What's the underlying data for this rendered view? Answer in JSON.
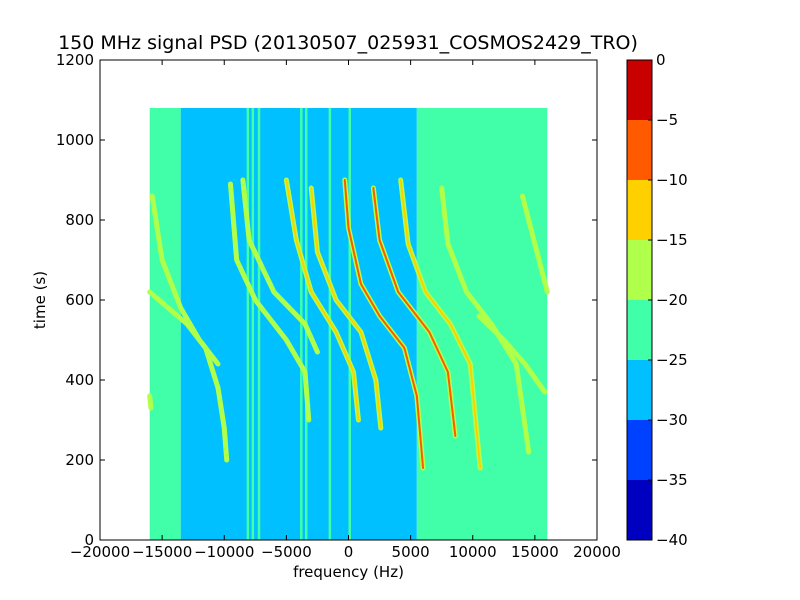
{
  "chart_data": {
    "type": "heatmap",
    "title": "150 MHz signal PSD (20130507_025931_COSMOS2429_TRO)",
    "xlabel": "frequency (Hz)",
    "ylabel": "time (s)",
    "xlim": [
      -20000,
      20000
    ],
    "ylim": [
      0,
      1200
    ],
    "x_ticks": [
      -20000,
      -15000,
      -10000,
      -5000,
      0,
      5000,
      10000,
      15000,
      20000
    ],
    "x_tick_labels": [
      "−20000",
      "−15000",
      "−10000",
      "−5000",
      "0",
      "5000",
      "10000",
      "15000",
      "20000"
    ],
    "y_ticks": [
      0,
      200,
      400,
      600,
      800,
      1000,
      1200
    ],
    "y_tick_labels": [
      "0",
      "200",
      "400",
      "600",
      "800",
      "1000",
      "1200"
    ],
    "data_extent": {
      "x": [
        -16000,
        16000
      ],
      "y": [
        0,
        1080
      ]
    },
    "colorbar": {
      "range": [
        -40,
        0
      ],
      "levels": [
        -40,
        -35,
        -30,
        -25,
        -20,
        -15,
        -10,
        -5,
        0
      ],
      "tick_labels": [
        "−40",
        "−35",
        "−30",
        "−25",
        "−20",
        "−15",
        "−10",
        "−5",
        "0"
      ],
      "colors": [
        "#0000c0",
        "#0040ff",
        "#00c0ff",
        "#40ffa8",
        "#b0ff4a",
        "#ffd000",
        "#ff5a00",
        "#c80000"
      ]
    },
    "background_regions": [
      {
        "x": [
          -16000,
          -13500
        ],
        "level": -22.5
      },
      {
        "x": [
          -13500,
          5500
        ],
        "level": -27.5
      },
      {
        "x": [
          5500,
          16000
        ],
        "level": -22.5
      }
    ],
    "vertical_lines": [
      {
        "x": -8100,
        "level": -22.5
      },
      {
        "x": -7700,
        "level": -22.5
      },
      {
        "x": -7200,
        "level": -22.5
      },
      {
        "x": -3800,
        "level": -22.5
      },
      {
        "x": -3400,
        "level": -22.5
      },
      {
        "x": -1500,
        "level": -22.5
      },
      {
        "x": 100,
        "level": -22.5
      }
    ],
    "traces": [
      {
        "points": [
          [
            -16000,
            620
          ],
          [
            -13000,
            540
          ],
          [
            -11500,
            480
          ],
          [
            -10500,
            380
          ],
          [
            -10000,
            280
          ],
          [
            -9800,
            200
          ]
        ],
        "level": -17.5
      },
      {
        "points": [
          [
            -15800,
            860
          ],
          [
            -15000,
            700
          ],
          [
            -13500,
            580
          ],
          [
            -12000,
            500
          ],
          [
            -10500,
            440
          ]
        ],
        "level": -17.5
      },
      {
        "points": [
          [
            -9500,
            890
          ],
          [
            -9000,
            700
          ],
          [
            -7500,
            600
          ],
          [
            -5000,
            500
          ],
          [
            -3500,
            420
          ],
          [
            -3200,
            300
          ]
        ],
        "level": -17.5
      },
      {
        "points": [
          [
            -8500,
            900
          ],
          [
            -8000,
            750
          ],
          [
            -6000,
            620
          ],
          [
            -3500,
            540
          ],
          [
            -2500,
            470
          ]
        ],
        "level": -17.5
      },
      {
        "points": [
          [
            -5000,
            900
          ],
          [
            -4200,
            750
          ],
          [
            -3000,
            620
          ],
          [
            -1000,
            520
          ],
          [
            400,
            420
          ],
          [
            800,
            300
          ]
        ],
        "level": -12.5
      },
      {
        "points": [
          [
            -3000,
            880
          ],
          [
            -2500,
            720
          ],
          [
            -1000,
            600
          ],
          [
            1000,
            520
          ],
          [
            2200,
            400
          ],
          [
            2600,
            280
          ]
        ],
        "level": -12.5
      },
      {
        "points": [
          [
            -300,
            900
          ],
          [
            0,
            780
          ],
          [
            1000,
            640
          ],
          [
            2500,
            560
          ],
          [
            4500,
            480
          ],
          [
            5500,
            360
          ],
          [
            6000,
            180
          ]
        ],
        "level": -7.5
      },
      {
        "points": [
          [
            2000,
            880
          ],
          [
            2500,
            750
          ],
          [
            4000,
            620
          ],
          [
            6500,
            520
          ],
          [
            8000,
            420
          ],
          [
            8600,
            260
          ]
        ],
        "level": -7.5
      },
      {
        "points": [
          [
            4200,
            900
          ],
          [
            4800,
            740
          ],
          [
            6200,
            620
          ],
          [
            8200,
            540
          ],
          [
            9800,
            440
          ],
          [
            10600,
            180
          ]
        ],
        "level": -12.5
      },
      {
        "points": [
          [
            7500,
            880
          ],
          [
            8000,
            740
          ],
          [
            9500,
            620
          ],
          [
            11500,
            540
          ],
          [
            13500,
            440
          ],
          [
            14500,
            220
          ]
        ],
        "level": -17.5
      },
      {
        "points": [
          [
            10500,
            560
          ],
          [
            12500,
            500
          ],
          [
            14200,
            440
          ],
          [
            15800,
            370
          ]
        ],
        "level": -17.5
      },
      {
        "points": [
          [
            14000,
            860
          ],
          [
            15000,
            740
          ],
          [
            16000,
            620
          ]
        ],
        "level": -17.5
      },
      {
        "points": [
          [
            -16000,
            360
          ],
          [
            -15900,
            330
          ]
        ],
        "level": -17.5
      }
    ]
  }
}
